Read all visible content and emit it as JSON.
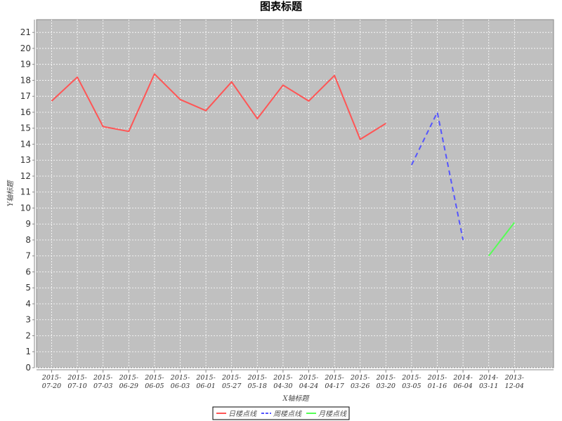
{
  "chart_data": {
    "type": "line",
    "title": "图表标题",
    "xlabel": "X轴标题",
    "ylabel": "Y轴标题",
    "ylim": [
      0,
      21.8
    ],
    "yticks": [
      0,
      1,
      2,
      3,
      4,
      5,
      6,
      7,
      8,
      9,
      10,
      11,
      12,
      13,
      14,
      15,
      16,
      17,
      18,
      19,
      20,
      21
    ],
    "grid": true,
    "legend_position": "bottom",
    "categories": [
      [
        "2015-",
        "07-20"
      ],
      [
        "2015-",
        "07-10"
      ],
      [
        "2015-",
        "07-03"
      ],
      [
        "2015-",
        "06-29"
      ],
      [
        "2015-",
        "06-05"
      ],
      [
        "2015-",
        "06-03"
      ],
      [
        "2015-",
        "06-01"
      ],
      [
        "2015-",
        "05-27"
      ],
      [
        "2015-",
        "05-18"
      ],
      [
        "2015-",
        "04-30"
      ],
      [
        "2015-",
        "04-24"
      ],
      [
        "2015-",
        "04-17"
      ],
      [
        "2015-",
        "03-26"
      ],
      [
        "2015-",
        "03-20"
      ],
      [
        "2015-",
        "03-05"
      ],
      [
        "2015-",
        "01-16"
      ],
      [
        "2014-",
        "06-04"
      ],
      [
        "2014-",
        "03-11"
      ],
      [
        "2013-",
        "12-04"
      ]
    ],
    "series": [
      {
        "name": "日楼点线",
        "color": "#ff5555",
        "dash": "solid",
        "values": [
          16.7,
          18.2,
          15.1,
          14.8,
          18.4,
          16.8,
          16.1,
          17.9,
          15.6,
          17.7,
          16.7,
          18.3,
          14.3,
          15.3,
          null,
          null,
          null,
          null,
          null
        ]
      },
      {
        "name": "周楼点线",
        "color": "#5555ff",
        "dash": "dashed",
        "values": [
          null,
          null,
          null,
          null,
          null,
          null,
          null,
          null,
          null,
          null,
          null,
          null,
          null,
          null,
          12.7,
          16.0,
          8.0,
          null,
          null
        ]
      },
      {
        "name": "月楼点线",
        "color": "#55ff55",
        "dash": "solid",
        "values": [
          null,
          null,
          null,
          null,
          null,
          null,
          null,
          null,
          null,
          null,
          null,
          null,
          null,
          null,
          null,
          null,
          null,
          7.0,
          9.1
        ]
      }
    ]
  }
}
